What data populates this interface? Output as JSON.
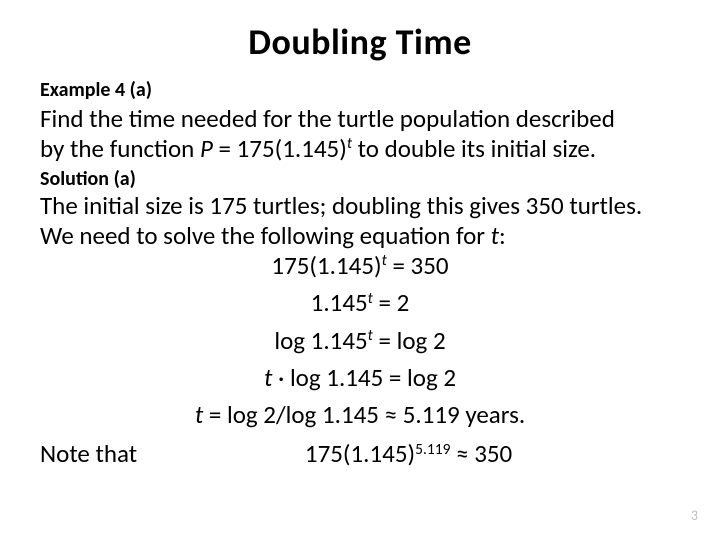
{
  "title": "Doubling Time",
  "example_label": "Example 4 (a)",
  "problem_line1": "Find the time needed for the turtle population described",
  "problem_line2_pre": "by the function ",
  "problem_func_P": "P",
  "problem_eq_mid": " = 175(1.145)",
  "problem_exp_t": "t",
  "problem_line2_post": " to double its initial size.",
  "solution_label": "Solution (a)",
  "sol_line1": "The initial size is 175 turtles; doubling this gives 350 turtles.",
  "sol_line2_pre": "We need to solve the following equation for ",
  "sol_line2_t": "t",
  "sol_line2_post": ":",
  "eq1_lhs": "175(1.145)",
  "eq1_exp": "t",
  "eq1_rhs": " = 350",
  "eq2_lhs": "1.145",
  "eq2_exp": "t",
  "eq2_rhs": " = 2",
  "eq3_pre": "log 1.145",
  "eq3_exp": "t",
  "eq3_rhs": " = log 2",
  "eq4_t": "t",
  "eq4_mid": " · log 1.145 = log 2",
  "eq5_t": "t",
  "eq5_rhs": " = log 2/log 1.145 ≈ 5.119 years.",
  "note_label": "Note that",
  "note_eq_lhs": "175(1.145)",
  "note_eq_exp": "5.119",
  "note_eq_rhs": " ≈ 350",
  "page_number": "3"
}
